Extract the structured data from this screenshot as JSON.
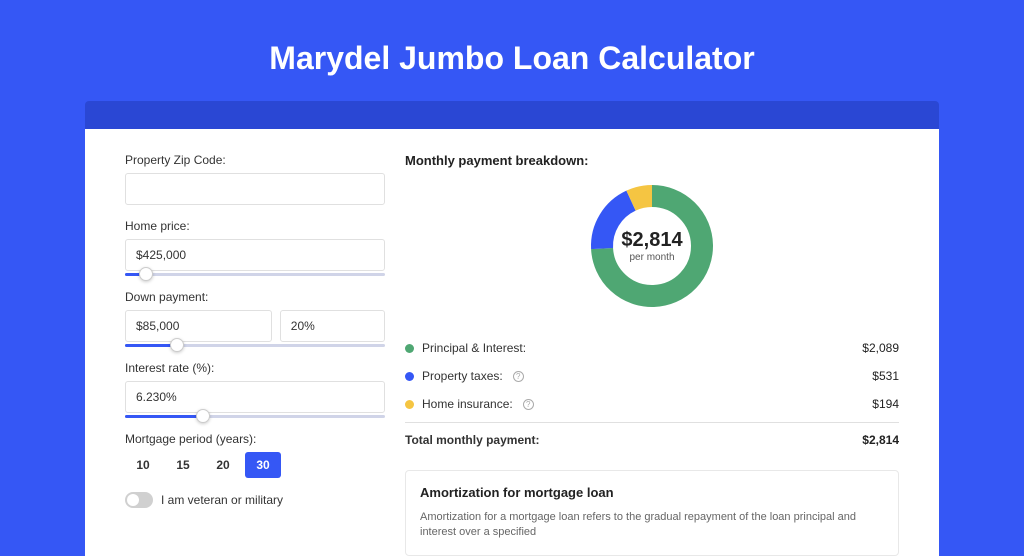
{
  "pageTitle": "Marydel Jumbo Loan Calculator",
  "form": {
    "zip": {
      "label": "Property Zip Code:",
      "value": ""
    },
    "homePrice": {
      "label": "Home price:",
      "value": "$425,000",
      "sliderPercent": 8
    },
    "downPayment": {
      "label": "Down payment:",
      "amount": "$85,000",
      "percent": "20%",
      "sliderPercent": 20
    },
    "interestRate": {
      "label": "Interest rate (%):",
      "value": "6.230%",
      "sliderPercent": 30
    },
    "mortgagePeriod": {
      "label": "Mortgage period (years):",
      "options": [
        "10",
        "15",
        "20",
        "30"
      ],
      "active": "30"
    },
    "veteran": {
      "label": "I am veteran or military"
    }
  },
  "breakdown": {
    "title": "Monthly payment breakdown:",
    "centerAmount": "$2,814",
    "centerSub": "per month",
    "donut": {
      "slices": [
        {
          "color": "#4fa773",
          "percent": 74.2
        },
        {
          "color": "#3557f5",
          "percent": 18.9
        },
        {
          "color": "#f5c542",
          "percent": 6.9
        }
      ]
    },
    "items": [
      {
        "color": "#4fa773",
        "label": "Principal & Interest:",
        "value": "$2,089",
        "info": false
      },
      {
        "color": "#3557f5",
        "label": "Property taxes:",
        "value": "$531",
        "info": true
      },
      {
        "color": "#f5c542",
        "label": "Home insurance:",
        "value": "$194",
        "info": true
      }
    ],
    "total": {
      "label": "Total monthly payment:",
      "value": "$2,814"
    }
  },
  "amortization": {
    "title": "Amortization for mortgage loan",
    "text": "Amortization for a mortgage loan refers to the gradual repayment of the loan principal and interest over a specified"
  }
}
